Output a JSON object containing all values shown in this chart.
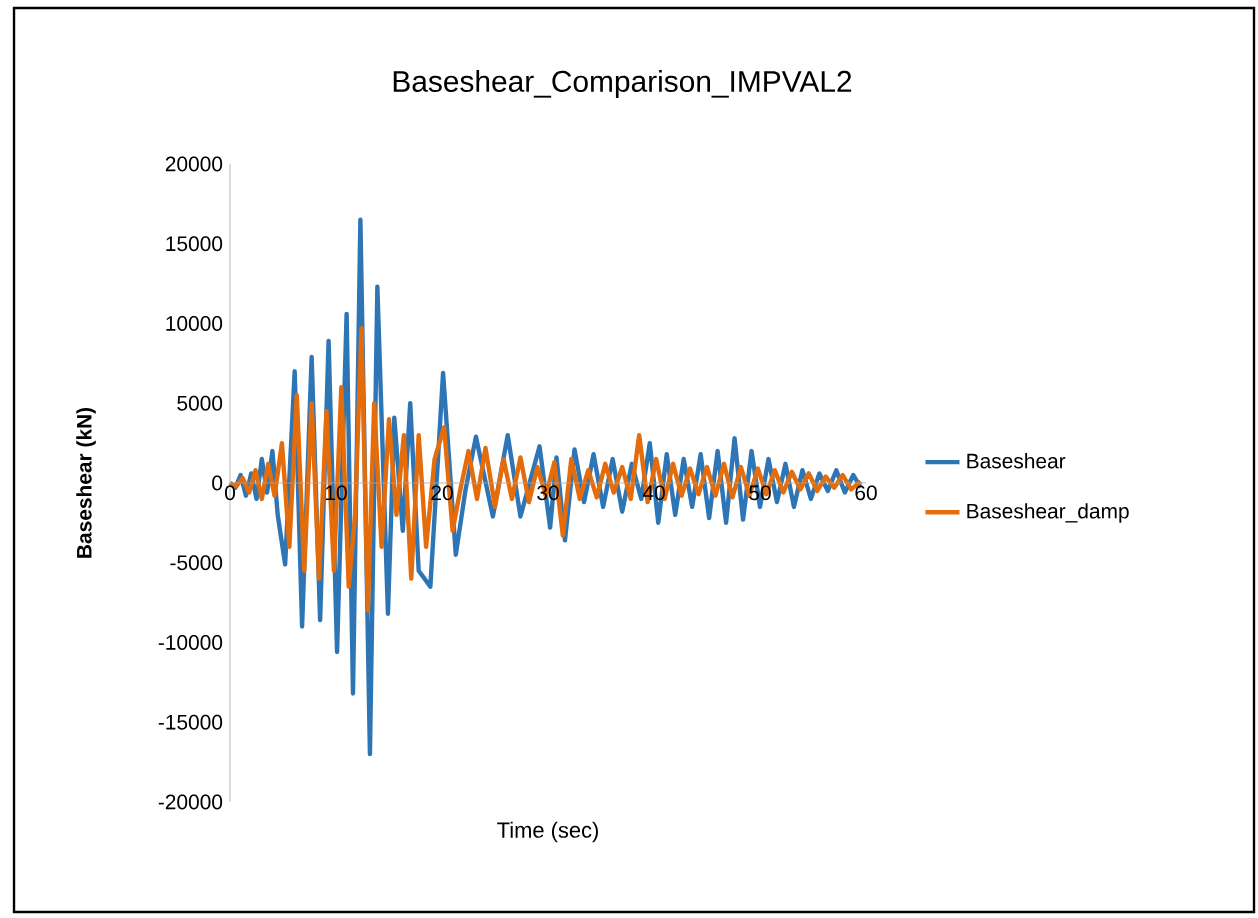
{
  "chart_data": {
    "type": "line",
    "title": "Baseshear_Comparison_IMPVAL2",
    "xlabel": "Time (sec)",
    "ylabel": "Baseshear (kN)",
    "xlim": [
      0,
      60
    ],
    "xticks": [
      0,
      10,
      20,
      30,
      40,
      50,
      60
    ],
    "ylim": [
      -20000,
      20000
    ],
    "yticks": [
      -20000,
      -15000,
      -10000,
      -5000,
      0,
      5000,
      10000,
      15000,
      20000
    ],
    "legend": "right",
    "marker": "none",
    "line_style": "solid",
    "series": [
      {
        "name": "Baseshear",
        "color": "#2e75b6",
        "x": [
          0,
          0.5,
          1,
          1.5,
          2,
          2.5,
          3,
          3.5,
          4,
          4.5,
          5.2,
          6.1,
          6.8,
          7.7,
          8.5,
          9.3,
          10.1,
          11.0,
          11.6,
          12.3,
          13.2,
          13.9,
          14.9,
          15.5,
          16.3,
          17,
          17.8,
          18.9,
          20.1,
          21.3,
          22.2,
          23.2,
          24.8,
          26.2,
          27.4,
          29.2,
          30.2,
          30.8,
          31.6,
          32.5,
          33.4,
          34.3,
          35.2,
          36.1,
          37,
          37.9,
          38.8,
          39.6,
          40.4,
          41.2,
          42,
          42.8,
          43.6,
          44.4,
          45.2,
          46,
          46.8,
          47.6,
          48.4,
          49.2,
          50,
          50.8,
          51.6,
          52.4,
          53.2,
          54,
          54.8,
          55.6,
          56.4,
          57.2,
          58,
          58.8,
          59.5
        ],
        "values": [
          0,
          -300,
          500,
          -800,
          600,
          -1000,
          1500,
          -600,
          2000,
          -2000,
          -5100,
          7000,
          -9000,
          7900,
          -8600,
          8900,
          -10600,
          10600,
          -13200,
          16500,
          -17000,
          12300,
          -8200,
          4100,
          -3000,
          5000,
          -5500,
          -6500,
          6900,
          -4500,
          -500,
          2900,
          -2100,
          3000,
          -2100,
          2300,
          -2800,
          1600,
          -3600,
          2100,
          -1200,
          1800,
          -1500,
          1500,
          -1800,
          1200,
          -1000,
          2500,
          -2500,
          1800,
          -2000,
          1500,
          -1500,
          1800,
          -2200,
          2000,
          -2500,
          2800,
          -2300,
          2000,
          -1500,
          1500,
          -1200,
          1200,
          -1500,
          800,
          -1000,
          600,
          -500,
          800,
          -600,
          500,
          -300
        ]
      },
      {
        "name": "Baseshear_damp",
        "color": "#e46c0a",
        "x": [
          0,
          0.6,
          1.2,
          1.8,
          2.4,
          3,
          3.6,
          4.2,
          4.9,
          5.6,
          6.3,
          7,
          7.7,
          8.4,
          9.1,
          9.8,
          10.5,
          11.2,
          11.8,
          12.4,
          13,
          13.6,
          14.3,
          15,
          15.7,
          16.4,
          17.1,
          17.8,
          18.5,
          19.3,
          20.2,
          21,
          21.7,
          22.5,
          23.3,
          24.1,
          25,
          25.8,
          26.6,
          27.4,
          28.2,
          29,
          29.8,
          30.6,
          31.4,
          32.2,
          33,
          33.8,
          34.6,
          35.4,
          36.2,
          37,
          37.8,
          38.6,
          39.4,
          40.2,
          41,
          41.8,
          42.6,
          43.4,
          44.2,
          45,
          45.8,
          46.6,
          47.4,
          48.2,
          49,
          49.8,
          50.6,
          51.4,
          52.2,
          53,
          53.8,
          54.6,
          55.4,
          56.2,
          57,
          57.8,
          58.6,
          59.5
        ],
        "values": [
          0,
          -200,
          300,
          -600,
          800,
          -1000,
          1200,
          -800,
          2500,
          -4000,
          5500,
          -5500,
          5000,
          -6000,
          4500,
          -5500,
          6000,
          -6500,
          -2000,
          9700,
          -8000,
          5000,
          -4000,
          4000,
          -2000,
          3000,
          -6000,
          3000,
          -4000,
          1500,
          3500,
          -3000,
          -500,
          2000,
          -1000,
          2200,
          -1500,
          1500,
          -1000,
          1600,
          -1200,
          1000,
          -800,
          1300,
          -3300,
          1500,
          -1000,
          800,
          -900,
          1200,
          -600,
          1000,
          -1000,
          3000,
          -1200,
          1500,
          -1000,
          1200,
          -800,
          900,
          -700,
          1000,
          -800,
          1200,
          -900,
          1000,
          -800,
          900,
          -700,
          800,
          -600,
          700,
          -400,
          600,
          -500,
          400,
          -300,
          500,
          -400,
          100
        ]
      }
    ]
  }
}
